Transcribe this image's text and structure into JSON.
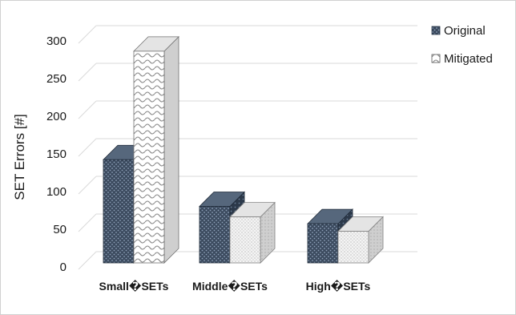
{
  "chart_data": {
    "type": "bar",
    "title": "",
    "xlabel": "",
    "ylabel": "SET Errors [#]",
    "categories": [
      "Small�SETs",
      "Middle�SETs",
      "High�SETs"
    ],
    "series": [
      {
        "name": "Original",
        "values": [
          137,
          75,
          52
        ]
      },
      {
        "name": "Mitigated",
        "values": [
          281,
          61,
          42
        ]
      }
    ],
    "ylim": [
      0,
      300
    ],
    "yticks": [
      0,
      50,
      100,
      150,
      200,
      250,
      300
    ],
    "grid": true,
    "legend": "right",
    "three_d": true
  },
  "colors": {
    "original_face": "#3b4a5e",
    "original_side": "#2c394a",
    "original_top": "#56677c",
    "mitigated_face": "#f2f2f2",
    "mitigated_side": "#cfcfcf",
    "mitigated_top": "#e4e4e4",
    "grid": "#d9d9d9"
  }
}
